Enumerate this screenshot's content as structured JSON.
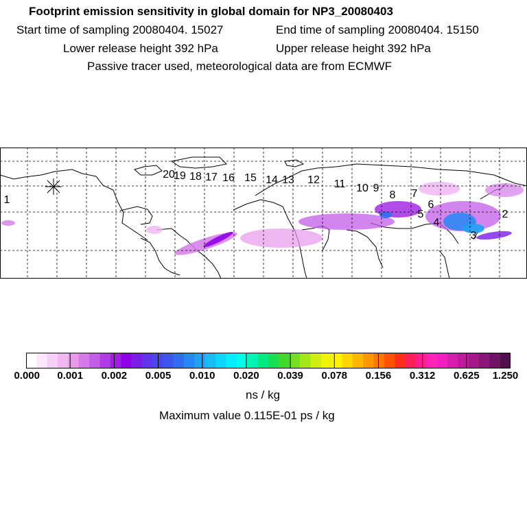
{
  "chart_data": {
    "type": "heatmap",
    "title": "Footprint emission sensitivity in global domain for NP3_20080403",
    "subtitle_lines": {
      "start": "Start time of sampling 20080404. 15027",
      "end": "End time of sampling 20080404. 15150",
      "lower": "Lower release height  392 hPa",
      "upper": "Upper release height  392 hPa",
      "tracer": "Passive tracer used, meteorological data are from ECMWF"
    },
    "colorbar": {
      "ticks": [
        "0.000",
        "0.001",
        "0.002",
        "0.005",
        "0.010",
        "0.020",
        "0.039",
        "0.078",
        "0.156",
        "0.312",
        "0.625",
        "1.250"
      ],
      "units": "ns / kg",
      "colors": [
        "#ffffff",
        "#fbe6fb",
        "#f6cff6",
        "#f0b6f0",
        "#e899ec",
        "#d47be9",
        "#c35ce8",
        "#b13ce6",
        "#a01ee6",
        "#8e00e8",
        "#7a1de8",
        "#5f34ea",
        "#4a46ee",
        "#3a55f0",
        "#2f6ef2",
        "#2688f4",
        "#1ea2f6",
        "#16bcf8",
        "#0ed5fa",
        "#06eefc",
        "#00ffe6",
        "#00f5b5",
        "#00ea84",
        "#18e055",
        "#3fd92c",
        "#74e020",
        "#a5e818",
        "#d0ef10",
        "#eef408",
        "#fff200",
        "#ffd500",
        "#ffb700",
        "#ff9800",
        "#ff7600",
        "#ff5300",
        "#ff2f1a",
        "#ff1d5a",
        "#ff1e8e",
        "#ff22b6",
        "#f21fc0",
        "#d81cad",
        "#be1a9c",
        "#a3188a",
        "#8a1678",
        "#701466",
        "#4f104c"
      ]
    },
    "maximum_value": "Maximum value  0.115E-01 ps / kg",
    "trajectory_labels": [
      "1",
      "2",
      "3",
      "4",
      "5",
      "6",
      "7",
      "8",
      "9",
      "10",
      "11",
      "12",
      "13",
      "14",
      "15",
      "16",
      "17",
      "18",
      "19",
      "20"
    ]
  }
}
